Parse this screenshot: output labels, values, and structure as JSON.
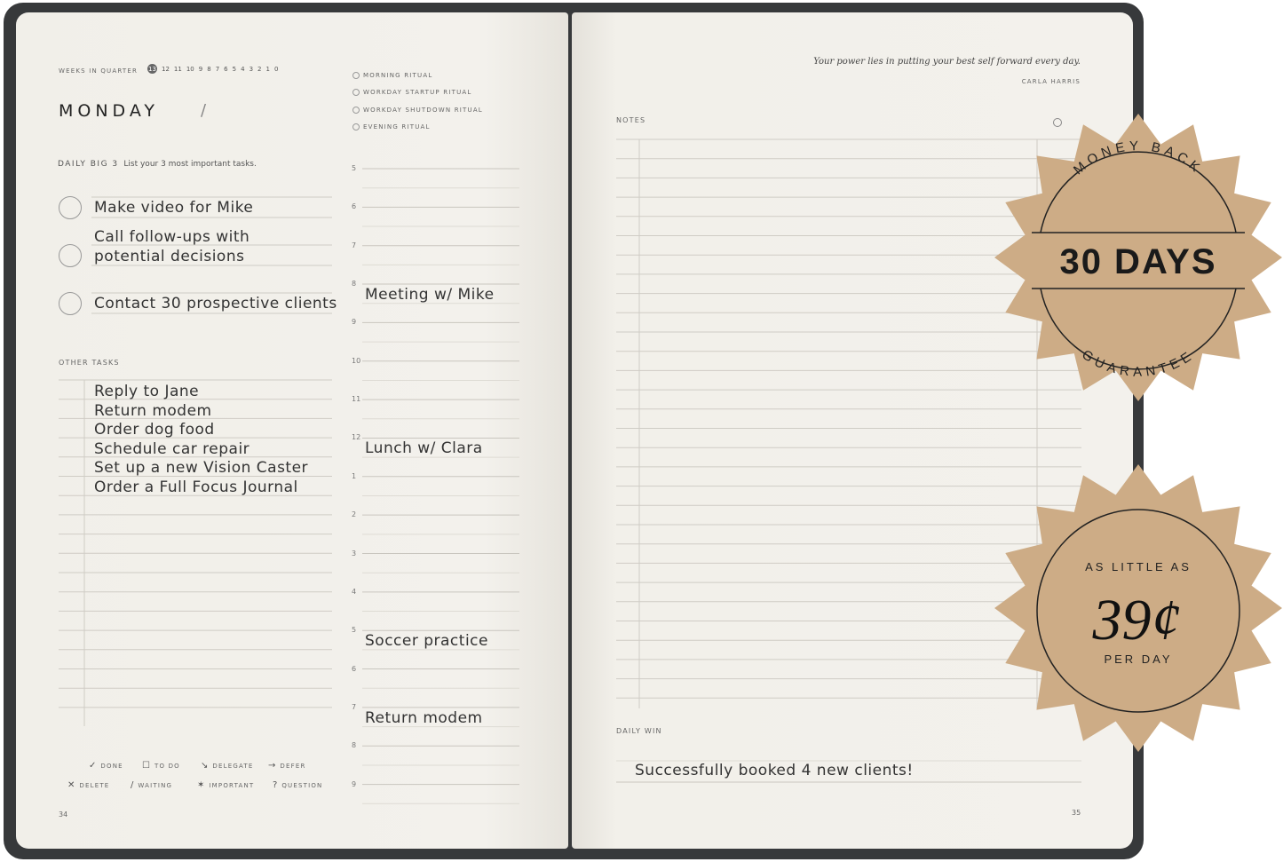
{
  "left_page": {
    "weeks_label": "WEEKS IN QUARTER",
    "weeks": [
      "13",
      "12",
      "11",
      "10",
      "9",
      "8",
      "7",
      "6",
      "5",
      "4",
      "3",
      "2",
      "1",
      "0"
    ],
    "day": "MONDAY",
    "date_sep": "/",
    "rituals": [
      "MORNING RITUAL",
      "WORKDAY STARTUP RITUAL",
      "WORKDAY SHUTDOWN RITUAL",
      "EVENING RITUAL"
    ],
    "big3_label": "DAILY BIG 3",
    "big3_hint": "List your 3 most important tasks.",
    "big3": [
      "Make video for Mike",
      "Call follow-ups with",
      "potential decisions",
      "Contact 30 prospective clients"
    ],
    "other_label": "OTHER TASKS",
    "other": [
      "Reply to Jane",
      "Return modem",
      "Order dog food",
      "Schedule car repair",
      "Set up a new Vision Caster",
      "Order a Full Focus Journal"
    ],
    "hours": [
      "5",
      "6",
      "7",
      "8",
      "9",
      "10",
      "11",
      "12",
      "1",
      "2",
      "3",
      "4",
      "5",
      "6",
      "7",
      "8",
      "9"
    ],
    "schedule": [
      {
        "hour": "8",
        "text": "Meeting w/ Mike"
      },
      {
        "hour": "12",
        "text": "Lunch w/ Clara"
      },
      {
        "hour": "5",
        "text": "Soccer practice"
      },
      {
        "hour": "7",
        "text": "Return modem"
      }
    ],
    "legend": [
      {
        "sym": "✓",
        "label": "DONE"
      },
      {
        "sym": "☐",
        "label": "TO DO"
      },
      {
        "sym": "↘",
        "label": "DELEGATE"
      },
      {
        "sym": "→",
        "label": "DEFER"
      },
      {
        "sym": "✕",
        "label": "DELETE"
      },
      {
        "sym": "/",
        "label": "WAITING"
      },
      {
        "sym": "✶",
        "label": "IMPORTANT"
      },
      {
        "sym": "?",
        "label": "QUESTION"
      }
    ],
    "page_number": "34"
  },
  "right_page": {
    "quote": "Your power lies in putting your best self forward every day.",
    "author": "CARLA HARRIS",
    "notes_label": "NOTES",
    "daily_win_label": "DAILY WIN",
    "daily_win": "Successfully booked 4 new clients!",
    "page_number": "35"
  },
  "badges": {
    "color": "#cdac86",
    "guarantee": {
      "top": "MONEY BACK",
      "main": "30 DAYS",
      "bottom": "GUARANTEE"
    },
    "price": {
      "top": "AS LITTLE AS",
      "main": "39¢",
      "bottom": "PER DAY"
    }
  }
}
